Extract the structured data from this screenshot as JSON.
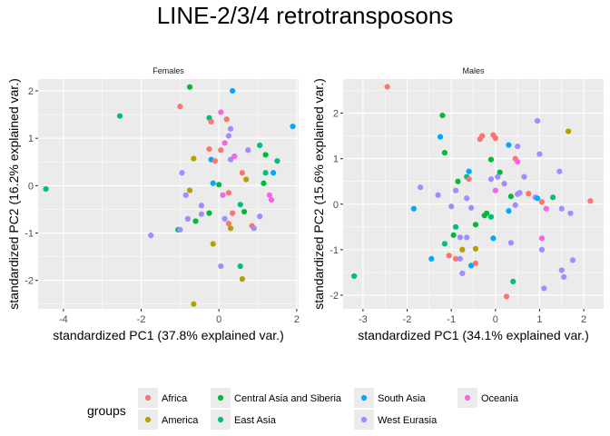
{
  "chart_data": {
    "title": "LINE-2/3/4 retrotransposons",
    "type": "scatter",
    "legend": {
      "title": "groups",
      "position": "bottom",
      "entries": [
        {
          "name": "Africa",
          "color": "#F8766D"
        },
        {
          "name": "America",
          "color": "#B79F00"
        },
        {
          "name": "Central Asia and Siberia",
          "color": "#00BA38"
        },
        {
          "name": "East Asia",
          "color": "#00BF7D"
        },
        {
          "name": "South Asia",
          "color": "#00A9FF"
        },
        {
          "name": "West Eurasia",
          "color": "#9F8CFF"
        },
        {
          "name": "Oceania",
          "color": "#F564E3"
        }
      ]
    },
    "panels": [
      {
        "strip": "Females",
        "xlabel": "standardized PC1 (37.8% explained var.)",
        "ylabel": "standardized PC2 (16.2% explained var.)",
        "xlim": [
          -4.65,
          2.05
        ],
        "ylim": [
          -2.6,
          2.25
        ],
        "xticks": [
          -4,
          -2,
          0,
          2
        ],
        "yticks": [
          -2,
          -1,
          0,
          1,
          2
        ],
        "grid": true,
        "points": [
          {
            "x": -4.45,
            "y": -0.07,
            "g": "East Asia"
          },
          {
            "x": -2.55,
            "y": 1.47,
            "g": "East Asia"
          },
          {
            "x": -1.0,
            "y": 1.67,
            "g": "Africa"
          },
          {
            "x": -0.75,
            "y": 2.08,
            "g": "Central Asia and Siberia"
          },
          {
            "x": -0.65,
            "y": 0.57,
            "g": "America"
          },
          {
            "x": -0.25,
            "y": 1.43,
            "g": "East Asia"
          },
          {
            "x": -0.2,
            "y": 1.35,
            "g": "Africa"
          },
          {
            "x": 0.35,
            "y": 2.0,
            "g": "South Asia"
          },
          {
            "x": 0.05,
            "y": 1.55,
            "g": "Oceania"
          },
          {
            "x": 0.2,
            "y": 1.4,
            "g": "Africa"
          },
          {
            "x": 0.3,
            "y": 1.2,
            "g": "West Eurasia"
          },
          {
            "x": 0.25,
            "y": 1.05,
            "g": "West Eurasia"
          },
          {
            "x": 0.15,
            "y": 0.9,
            "g": "Oceania"
          },
          {
            "x": 0.05,
            "y": 0.75,
            "g": "Africa"
          },
          {
            "x": -0.25,
            "y": 0.77,
            "g": "Africa"
          },
          {
            "x": -0.2,
            "y": 0.55,
            "g": "South Asia"
          },
          {
            "x": -0.1,
            "y": 0.52,
            "g": "Africa"
          },
          {
            "x": 0.3,
            "y": 0.55,
            "g": "West Eurasia"
          },
          {
            "x": 0.4,
            "y": 0.62,
            "g": "Oceania"
          },
          {
            "x": 0.6,
            "y": 0.27,
            "g": "Africa"
          },
          {
            "x": 0.7,
            "y": 0.13,
            "g": "America"
          },
          {
            "x": 0.75,
            "y": 0.75,
            "g": "West Eurasia"
          },
          {
            "x": 1.05,
            "y": 0.85,
            "g": "East Asia"
          },
          {
            "x": 1.2,
            "y": 0.65,
            "g": "Central Asia and Siberia"
          },
          {
            "x": 1.2,
            "y": 0.27,
            "g": "East Asia"
          },
          {
            "x": 1.4,
            "y": 0.27,
            "g": "South Asia"
          },
          {
            "x": 1.5,
            "y": 0.52,
            "g": "East Asia"
          },
          {
            "x": 1.9,
            "y": 1.25,
            "g": "South Asia"
          },
          {
            "x": 1.15,
            "y": 0.05,
            "g": "Central Asia and Siberia"
          },
          {
            "x": -0.95,
            "y": 0.27,
            "g": "West Eurasia"
          },
          {
            "x": -0.75,
            "y": -0.1,
            "g": "America"
          },
          {
            "x": -0.85,
            "y": -0.2,
            "g": "West Eurasia"
          },
          {
            "x": -0.15,
            "y": 0.05,
            "g": "South Asia"
          },
          {
            "x": 0.0,
            "y": 0.02,
            "g": "Central Asia and Siberia"
          },
          {
            "x": 0.1,
            "y": -0.2,
            "g": "Oceania"
          },
          {
            "x": 0.25,
            "y": -0.15,
            "g": "Africa"
          },
          {
            "x": 0.55,
            "y": -0.4,
            "g": "East Asia"
          },
          {
            "x": 0.65,
            "y": -0.55,
            "g": "Central Asia and Siberia"
          },
          {
            "x": 0.35,
            "y": -0.58,
            "g": "Africa"
          },
          {
            "x": 0.15,
            "y": -0.7,
            "g": "West Eurasia"
          },
          {
            "x": -0.25,
            "y": -0.58,
            "g": "Central Asia and Siberia"
          },
          {
            "x": -0.45,
            "y": -0.6,
            "g": "West Eurasia"
          },
          {
            "x": -0.45,
            "y": -0.42,
            "g": "West Eurasia"
          },
          {
            "x": -0.6,
            "y": -0.75,
            "g": "Central Asia and Siberia"
          },
          {
            "x": -0.8,
            "y": -0.7,
            "g": "West Eurasia"
          },
          {
            "x": -1.05,
            "y": -0.93,
            "g": "East Asia"
          },
          {
            "x": -1.0,
            "y": -0.93,
            "g": "West Eurasia"
          },
          {
            "x": -1.75,
            "y": -1.05,
            "g": "West Eurasia"
          },
          {
            "x": 0.25,
            "y": -0.8,
            "g": "Africa"
          },
          {
            "x": 0.3,
            "y": -0.9,
            "g": "America"
          },
          {
            "x": 0.85,
            "y": -0.85,
            "g": "Africa"
          },
          {
            "x": 0.9,
            "y": -0.9,
            "g": "West Eurasia"
          },
          {
            "x": 1.05,
            "y": -0.65,
            "g": "West Eurasia"
          },
          {
            "x": 1.3,
            "y": -0.2,
            "g": "Oceania"
          },
          {
            "x": 1.35,
            "y": -0.3,
            "g": "Oceania"
          },
          {
            "x": -0.15,
            "y": -1.23,
            "g": "America"
          },
          {
            "x": 0.05,
            "y": -1.7,
            "g": "West Eurasia"
          },
          {
            "x": 0.55,
            "y": -1.7,
            "g": "East Asia"
          },
          {
            "x": 0.6,
            "y": -1.97,
            "g": "America"
          },
          {
            "x": -0.65,
            "y": -2.5,
            "g": "America"
          }
        ]
      },
      {
        "strip": "Males",
        "xlabel": "standardized PC1 (34.1% explained var.)",
        "ylabel": "standardized PC2 (15.6% explained var.)",
        "xlim": [
          -3.45,
          2.45
        ],
        "ylim": [
          -2.3,
          2.75
        ],
        "xticks": [
          -3,
          -2,
          -1,
          0,
          1,
          2
        ],
        "yticks": [
          -2,
          -1,
          0,
          1,
          2
        ],
        "grid": true,
        "points": [
          {
            "x": -2.45,
            "y": 2.58,
            "g": "Africa"
          },
          {
            "x": -3.2,
            "y": -1.58,
            "g": "East Asia"
          },
          {
            "x": -1.2,
            "y": 1.95,
            "g": "Central Asia and Siberia"
          },
          {
            "x": -1.25,
            "y": 1.48,
            "g": "South Asia"
          },
          {
            "x": -1.15,
            "y": 1.13,
            "g": "Central Asia and Siberia"
          },
          {
            "x": -0.35,
            "y": 1.43,
            "g": "Africa"
          },
          {
            "x": -0.3,
            "y": 1.5,
            "g": "Africa"
          },
          {
            "x": -0.05,
            "y": 1.52,
            "g": "Africa"
          },
          {
            "x": 0.0,
            "y": 1.45,
            "g": "Africa"
          },
          {
            "x": 0.3,
            "y": 1.3,
            "g": "South Asia"
          },
          {
            "x": 0.5,
            "y": 1.27,
            "g": "West Eurasia"
          },
          {
            "x": 0.95,
            "y": 1.83,
            "g": "West Eurasia"
          },
          {
            "x": 1.65,
            "y": 1.6,
            "g": "America"
          },
          {
            "x": 1.0,
            "y": 1.1,
            "g": "West Eurasia"
          },
          {
            "x": 1.45,
            "y": 0.72,
            "g": "West Eurasia"
          },
          {
            "x": -0.1,
            "y": 0.98,
            "g": "Central Asia and Siberia"
          },
          {
            "x": 0.45,
            "y": 1.0,
            "g": "Africa"
          },
          {
            "x": 0.5,
            "y": 0.93,
            "g": "Oceania"
          },
          {
            "x": 0.1,
            "y": 0.7,
            "g": "Central Asia and Siberia"
          },
          {
            "x": -0.6,
            "y": 0.72,
            "g": "South Asia"
          },
          {
            "x": -0.65,
            "y": 0.6,
            "g": "East Asia"
          },
          {
            "x": -0.6,
            "y": 0.55,
            "g": "Africa"
          },
          {
            "x": -0.85,
            "y": 0.5,
            "g": "Central Asia and Siberia"
          },
          {
            "x": -0.1,
            "y": 0.55,
            "g": "West Eurasia"
          },
          {
            "x": 0.05,
            "y": 0.6,
            "g": "West Eurasia"
          },
          {
            "x": 0.65,
            "y": 0.6,
            "g": "West Eurasia"
          },
          {
            "x": -1.7,
            "y": 0.37,
            "g": "West Eurasia"
          },
          {
            "x": -0.9,
            "y": 0.3,
            "g": "West Eurasia"
          },
          {
            "x": -1.3,
            "y": 0.2,
            "g": "West Eurasia"
          },
          {
            "x": 0.35,
            "y": 0.17,
            "g": "Central Asia and Siberia"
          },
          {
            "x": 0.5,
            "y": 0.22,
            "g": "West Eurasia"
          },
          {
            "x": 0.55,
            "y": 0.25,
            "g": "West Eurasia"
          },
          {
            "x": 0.75,
            "y": 0.23,
            "g": "Africa"
          },
          {
            "x": 0.2,
            "y": 0.45,
            "g": "West Eurasia"
          },
          {
            "x": 0.0,
            "y": 0.3,
            "g": "Oceania"
          },
          {
            "x": -0.65,
            "y": 0.13,
            "g": "West Eurasia"
          },
          {
            "x": -1.0,
            "y": -0.05,
            "g": "West Eurasia"
          },
          {
            "x": -1.85,
            "y": -0.1,
            "g": "South Asia"
          },
          {
            "x": -0.55,
            "y": -0.08,
            "g": "West Eurasia"
          },
          {
            "x": -0.2,
            "y": -0.2,
            "g": "Central Asia and Siberia"
          },
          {
            "x": -0.25,
            "y": -0.25,
            "g": "Central Asia and Siberia"
          },
          {
            "x": -0.1,
            "y": -0.28,
            "g": "East Asia"
          },
          {
            "x": 0.3,
            "y": -0.15,
            "g": "South Asia"
          },
          {
            "x": 0.45,
            "y": -0.02,
            "g": "West Eurasia"
          },
          {
            "x": 0.9,
            "y": 0.15,
            "g": "West Eurasia"
          },
          {
            "x": 0.95,
            "y": 0.13,
            "g": "South Asia"
          },
          {
            "x": 1.05,
            "y": 0.05,
            "g": "Africa"
          },
          {
            "x": 1.15,
            "y": -0.1,
            "g": "Oceania"
          },
          {
            "x": 1.3,
            "y": 0.15,
            "g": "East Asia"
          },
          {
            "x": 1.5,
            "y": -0.1,
            "g": "West Eurasia"
          },
          {
            "x": 1.7,
            "y": -0.2,
            "g": "West Eurasia"
          },
          {
            "x": 2.15,
            "y": 0.07,
            "g": "Africa"
          },
          {
            "x": -0.9,
            "y": -0.5,
            "g": "East Asia"
          },
          {
            "x": -0.95,
            "y": -0.68,
            "g": "Central Asia and Siberia"
          },
          {
            "x": -0.8,
            "y": -0.73,
            "g": "West Eurasia"
          },
          {
            "x": -0.65,
            "y": -0.73,
            "g": "West Eurasia"
          },
          {
            "x": -0.45,
            "y": -0.45,
            "g": "Central Asia and Siberia"
          },
          {
            "x": -0.05,
            "y": -0.75,
            "g": "South Asia"
          },
          {
            "x": -1.15,
            "y": -0.87,
            "g": "East Asia"
          },
          {
            "x": -0.75,
            "y": -1.0,
            "g": "America"
          },
          {
            "x": -0.45,
            "y": -0.98,
            "g": "America"
          },
          {
            "x": 0.35,
            "y": -0.85,
            "g": "West Eurasia"
          },
          {
            "x": 1.05,
            "y": -0.75,
            "g": "Oceania"
          },
          {
            "x": -1.05,
            "y": -1.13,
            "g": "Africa"
          },
          {
            "x": -0.9,
            "y": -1.2,
            "g": "Africa"
          },
          {
            "x": -0.8,
            "y": -1.2,
            "g": "West Eurasia"
          },
          {
            "x": -1.45,
            "y": -1.2,
            "g": "South Asia"
          },
          {
            "x": -0.75,
            "y": -1.52,
            "g": "West Eurasia"
          },
          {
            "x": -0.55,
            "y": -1.35,
            "g": "South Asia"
          },
          {
            "x": -0.45,
            "y": -1.3,
            "g": "Africa"
          },
          {
            "x": 0.4,
            "y": -1.7,
            "g": "East Asia"
          },
          {
            "x": 0.25,
            "y": -2.03,
            "g": "Africa"
          },
          {
            "x": 1.05,
            "y": -1.0,
            "g": "West Eurasia"
          },
          {
            "x": 1.5,
            "y": -1.45,
            "g": "West Eurasia"
          },
          {
            "x": 1.55,
            "y": -1.6,
            "g": "West Eurasia"
          },
          {
            "x": 1.1,
            "y": -1.85,
            "g": "West Eurasia"
          },
          {
            "x": 1.75,
            "y": -1.23,
            "g": "West Eurasia"
          }
        ]
      }
    ]
  }
}
